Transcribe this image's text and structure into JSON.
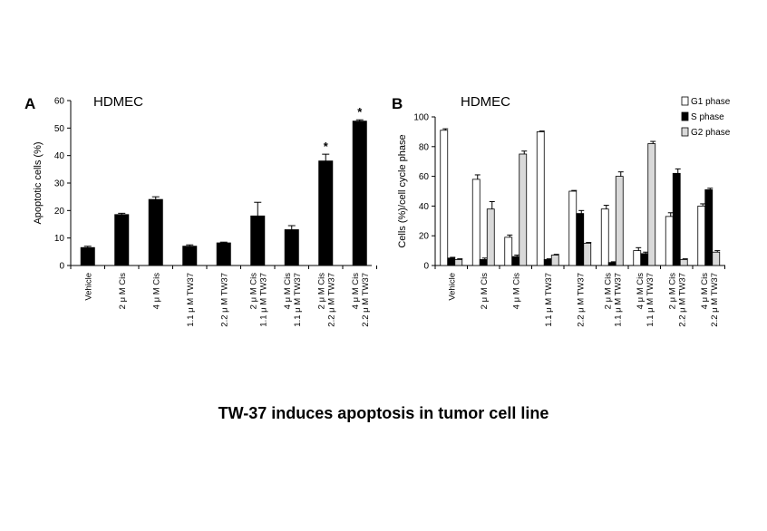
{
  "caption": "TW-37 induces apoptosis in tumor cell line",
  "chart_data": [
    {
      "type": "bar",
      "panel": "A",
      "title": "HDMEC",
      "ylabel": "Apoptotic cells (%)",
      "xlabel": "",
      "ylim": [
        0,
        60
      ],
      "yticks": [
        0,
        10,
        20,
        30,
        40,
        50,
        60
      ],
      "categories": [
        [
          "Vehicle"
        ],
        [
          "2 μ M Cis"
        ],
        [
          "4 μ M Cis"
        ],
        [
          "1.1 μ M TW37"
        ],
        [
          "2.2 μ M TW37"
        ],
        [
          "2 μ M Cis",
          "1.1 μ M TW37"
        ],
        [
          "4 μ M Cis",
          "1.1 μ M TW37"
        ],
        [
          "2 μ M Cis",
          "2.2 μ M TW37"
        ],
        [
          "4 μ M Cis",
          "2.2 μ M TW37"
        ]
      ],
      "values": [
        6.5,
        18.5,
        24,
        7,
        8.2,
        18,
        13,
        38,
        52.5
      ],
      "errors": [
        0.5,
        0.5,
        1,
        0.5,
        0.3,
        5,
        1.5,
        2.5,
        0.5
      ],
      "annotations": [
        "",
        "",
        "",
        "",
        "",
        "",
        "",
        "*",
        "*"
      ],
      "color": "#000000",
      "grid": false
    },
    {
      "type": "bar",
      "panel": "B",
      "title": "HDMEC",
      "ylabel": "Cells (%)/cell cycle phase",
      "xlabel": "",
      "ylim": [
        0,
        100
      ],
      "yticks": [
        0,
        20,
        40,
        60,
        80,
        100
      ],
      "legend_position": "top-right",
      "categories": [
        [
          "Vehicle"
        ],
        [
          "2 μ M Cis"
        ],
        [
          "4 μ M Cis"
        ],
        [
          "1.1 μ M TW37"
        ],
        [
          "2.2 μ M TW37"
        ],
        [
          "2 μ M Cis",
          "1.1 μ M TW37"
        ],
        [
          "4 μ M Cis",
          "1.1 μ M TW37"
        ],
        [
          "2 μ M Cis",
          "2.2 μ M TW37"
        ],
        [
          "4 μ M Cis",
          "2.2 μ M TW37"
        ]
      ],
      "series": [
        {
          "name": "G1 phase",
          "color": "#ffffff",
          "values": [
            91,
            58,
            19,
            90,
            50,
            38,
            10,
            33,
            40
          ],
          "errors": [
            1,
            3,
            1.5,
            0.5,
            0.5,
            2.5,
            2,
            2.5,
            1.5
          ]
        },
        {
          "name": "S phase",
          "color": "#000000",
          "values": [
            5,
            4,
            6,
            4,
            35,
            2,
            8,
            62,
            51
          ],
          "errors": [
            0.5,
            1,
            1,
            0.5,
            2,
            0.5,
            1,
            3,
            1
          ]
        },
        {
          "name": "G2 phase",
          "color": "#d9d9d9",
          "values": [
            4,
            38,
            75,
            7,
            15,
            60,
            82,
            4,
            9
          ],
          "errors": [
            0.5,
            5,
            2,
            0.5,
            0.5,
            3,
            1.5,
            0.5,
            1
          ]
        }
      ],
      "grid": false
    }
  ]
}
